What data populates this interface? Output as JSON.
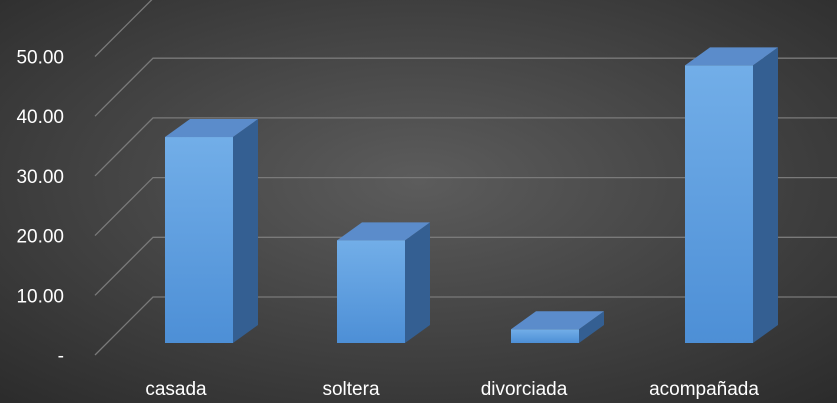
{
  "chart_data": {
    "type": "bar",
    "three_d": true,
    "categories": [
      "casada",
      "soltera",
      "divorciada",
      "acompañada"
    ],
    "values": [
      34.5,
      17.2,
      2.3,
      46.5
    ],
    "ylim": [
      0,
      55
    ],
    "y_ticks": [
      0,
      10,
      20,
      30,
      40,
      50
    ],
    "y_tick_labels": [
      "-",
      "10.00",
      "20.00",
      "30.00",
      "40.00",
      "50.00"
    ],
    "grid": true,
    "legend": "none",
    "colors": {
      "background_center": "#5c5c5c",
      "background_edge": "#2b2b2b",
      "bar_front_light": "#72aee8",
      "bar_front_dark": "#4d8fd6",
      "bar_side": "#345f92",
      "bar_top": "#5b8ccb",
      "gridline": "#7a7a7a",
      "text": "#ffffff"
    }
  }
}
